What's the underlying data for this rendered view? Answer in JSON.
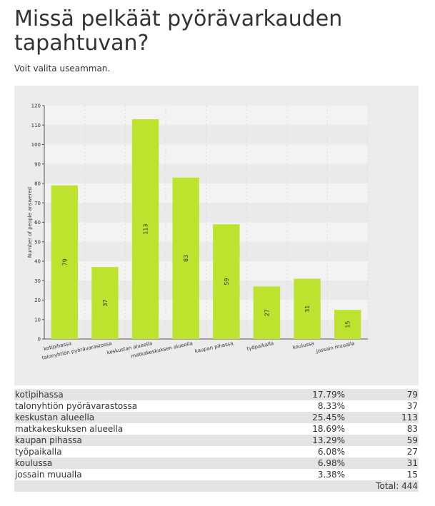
{
  "page": {
    "title": "Missä pelkäät pyörävarkauden tapahtuvan?",
    "subtitle": "Voit valita useamman."
  },
  "colors": {
    "bar": "#bde32e",
    "band_light": "#f3f3f3",
    "band_dark": "#eaeaea",
    "panel": "#ececec"
  },
  "chart_data": {
    "type": "bar",
    "categories": [
      "kotipihassa",
      "talonyhtiön pyörävarastossa",
      "keskustan alueella",
      "matkakeskuksen alueella",
      "kaupan pihassa",
      "työpaikalla",
      "koulussa",
      "jossain muualla"
    ],
    "values": [
      79,
      37,
      113,
      83,
      59,
      27,
      31,
      15
    ],
    "ylabel": "Number of people answered",
    "xlabel": "",
    "ylim": [
      0,
      120
    ],
    "yticks": [
      0,
      10,
      20,
      30,
      40,
      50,
      60,
      70,
      80,
      90,
      100,
      110,
      120
    ],
    "grid": true,
    "legend": "none"
  },
  "results": {
    "rows": [
      {
        "label": "kotipihassa",
        "percent": "17.79%",
        "count": "79"
      },
      {
        "label": "talonyhtiön pyörävarastossa",
        "percent": "8.33%",
        "count": "37"
      },
      {
        "label": "keskustan alueella",
        "percent": "25.45%",
        "count": "113"
      },
      {
        "label": "matkakeskuksen alueella",
        "percent": "18.69%",
        "count": "83"
      },
      {
        "label": "kaupan pihassa",
        "percent": "13.29%",
        "count": "59"
      },
      {
        "label": "työpaikalla",
        "percent": "6.08%",
        "count": "27"
      },
      {
        "label": "koulussa",
        "percent": "6.98%",
        "count": "31"
      },
      {
        "label": "jossain muualla",
        "percent": "3.38%",
        "count": "15"
      }
    ],
    "total_label": "Total: 444"
  }
}
